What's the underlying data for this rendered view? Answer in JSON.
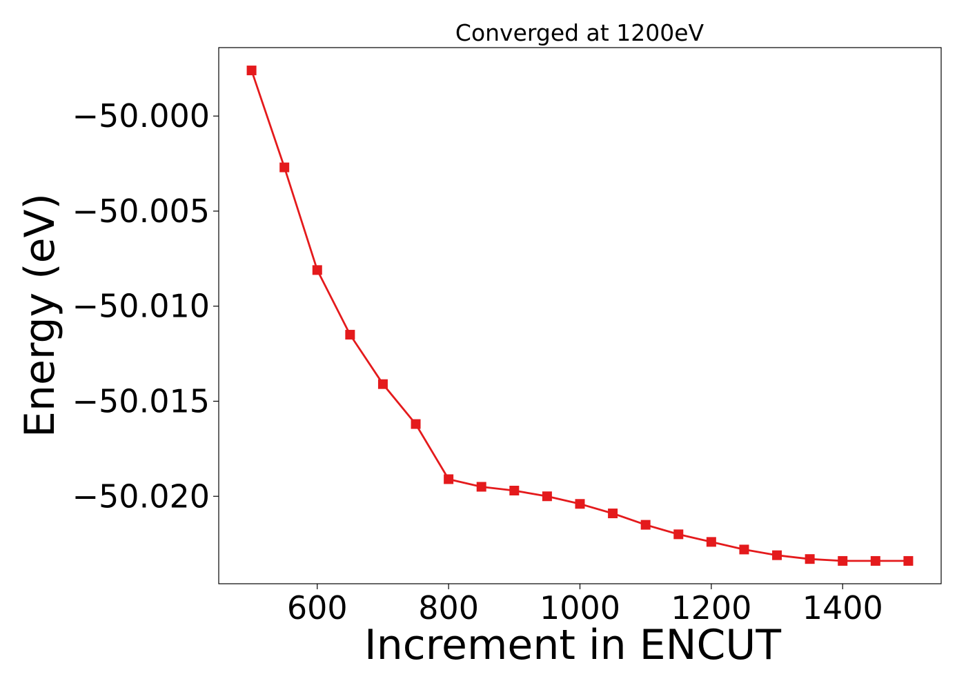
{
  "chart_data": {
    "type": "line",
    "title": "Converged at 1200eV",
    "xlabel": "Increment in ENCUT",
    "ylabel": "Energy (eV)",
    "xlim": [
      450,
      1550
    ],
    "ylim": [
      -50.0246,
      -49.9964
    ],
    "xticks": [
      600,
      800,
      1000,
      1200,
      1400
    ],
    "xtick_labels": [
      "600",
      "800",
      "1000",
      "1200",
      "1400"
    ],
    "yticks": [
      -50.0,
      -50.005,
      -50.01,
      -50.015,
      -50.02
    ],
    "ytick_labels": [
      "−50.000",
      "−50.005",
      "−50.010",
      "−50.015",
      "−50.020"
    ],
    "grid": false,
    "legend": "none",
    "series": [
      {
        "color": "#e41a1c",
        "marker": "square",
        "x": [
          500,
          550,
          600,
          650,
          700,
          750,
          800,
          850,
          900,
          950,
          1000,
          1050,
          1100,
          1150,
          1200,
          1250,
          1300,
          1350,
          1400,
          1450,
          1500
        ],
        "y": [
          -49.9976,
          -50.0027,
          -50.0081,
          -50.0115,
          -50.0141,
          -50.0162,
          -50.0191,
          -50.0195,
          -50.0197,
          -50.02,
          -50.0204,
          -50.0209,
          -50.0215,
          -50.022,
          -50.0224,
          -50.0228,
          -50.0231,
          -50.0233,
          -50.0234,
          -50.0234,
          -50.0234
        ]
      }
    ]
  }
}
